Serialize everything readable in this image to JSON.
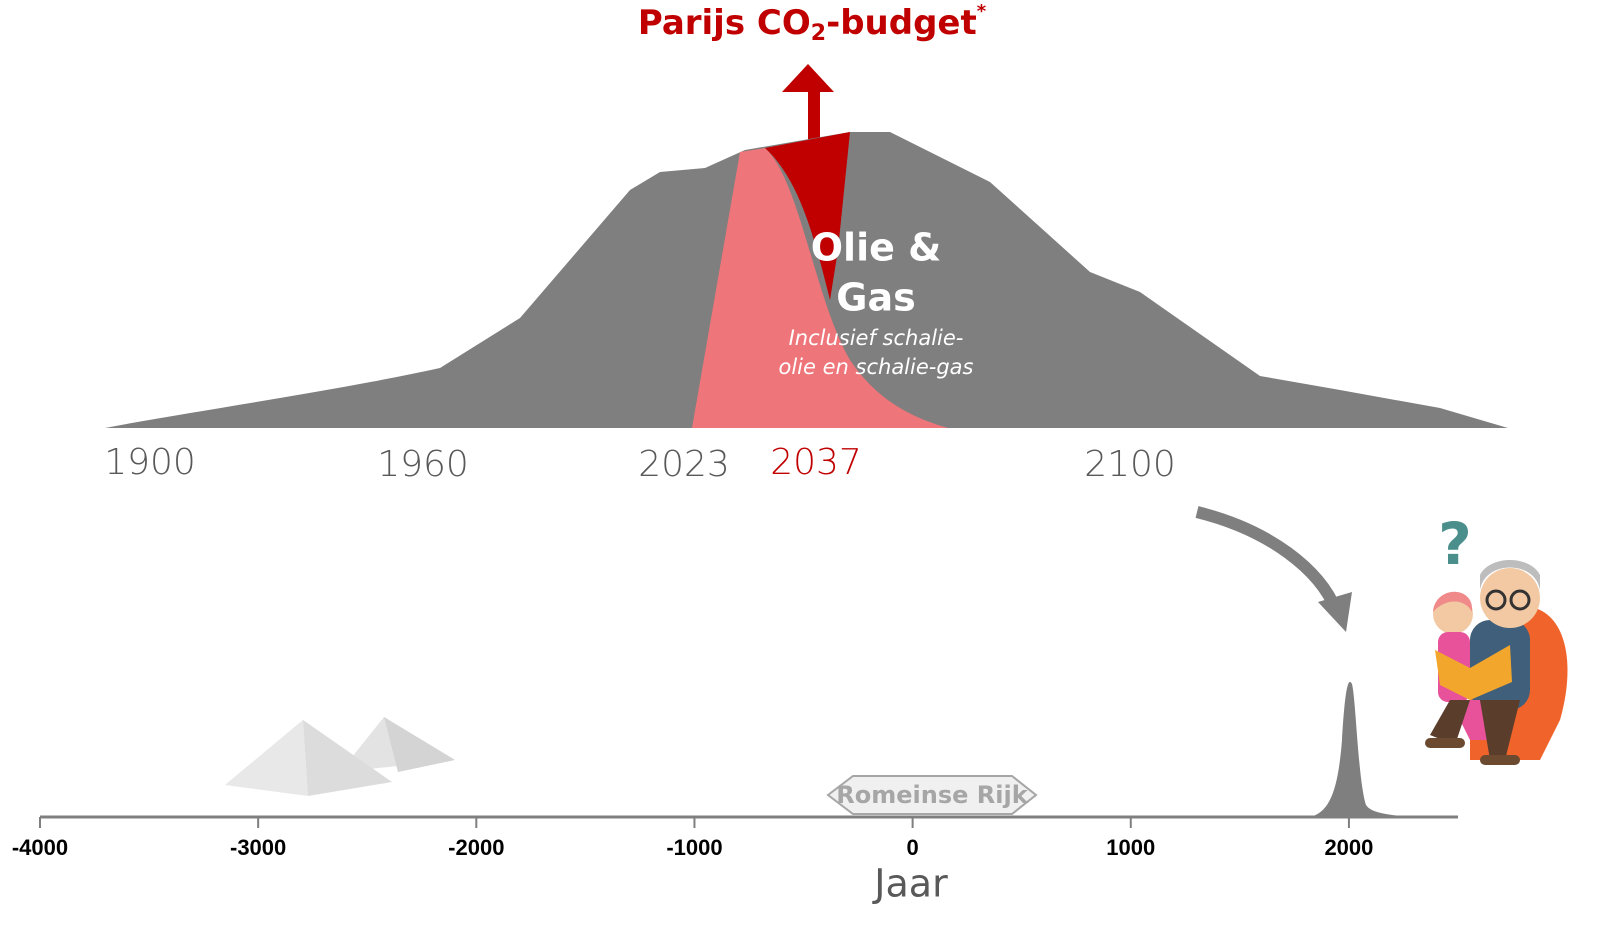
{
  "title": {
    "main": "Parijs CO",
    "sub": "2",
    "rest": "-budget",
    "mark": "*"
  },
  "upper_years": [
    "1900",
    "1960",
    "2023",
    "2037",
    "2100"
  ],
  "hump_label": {
    "line1": "Olie &",
    "line2": "Gas",
    "note1": "Inclusief schalie-",
    "note2": "olie en schalie-gas"
  },
  "question": "?",
  "era_label": "Romeinse Rijk",
  "axis": {
    "label": "Jaar",
    "lim": [
      -4000,
      2500
    ],
    "ticks": [
      -4000,
      -3000,
      -2000,
      -1000,
      0,
      1000,
      2000
    ]
  }
}
